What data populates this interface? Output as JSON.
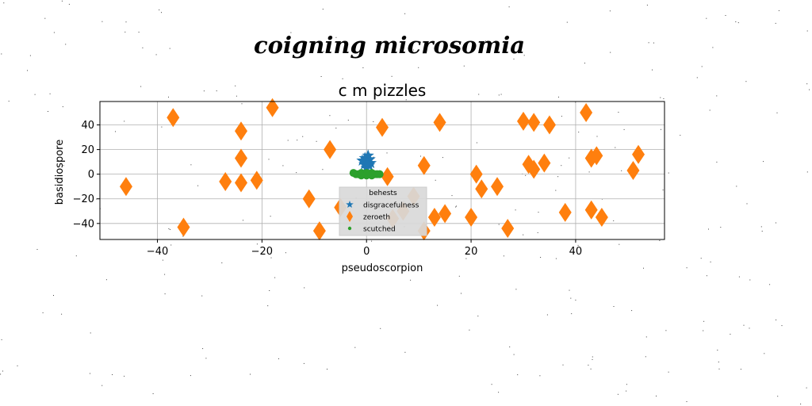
{
  "page_title": "coigning microsomia",
  "chart_data": {
    "type": "scatter",
    "title": "c m pizzles",
    "xlabel": "pseudoscorpion",
    "ylabel": "basidiospore",
    "xlim": [
      -51,
      57
    ],
    "ylim": [
      -53,
      59
    ],
    "x_ticks": [
      -40,
      -20,
      0,
      20,
      40
    ],
    "y_ticks": [
      -40,
      -20,
      0,
      20,
      40
    ],
    "grid": true,
    "legend": {
      "title": "behests",
      "placement": "lower center"
    },
    "colors": {
      "disgracefulness": "#1f77b4",
      "zeroeth": "#ff7f0e",
      "scutched": "#2ca02c"
    },
    "series": [
      {
        "name": "disgracefulness",
        "marker": "star",
        "points": [
          [
            0,
            10
          ],
          [
            0.3,
            15
          ],
          [
            -0.4,
            8
          ],
          [
            0.8,
            9
          ],
          [
            -0.8,
            11
          ],
          [
            0.6,
            12
          ],
          [
            0,
            5
          ],
          [
            -0.3,
            13
          ],
          [
            0.5,
            7
          ],
          [
            0.1,
            9
          ]
        ]
      },
      {
        "name": "zeroeth",
        "marker": "diamond",
        "points": [
          [
            -46,
            -10
          ],
          [
            -37,
            46
          ],
          [
            -35,
            -43
          ],
          [
            -27,
            -6
          ],
          [
            -24,
            35
          ],
          [
            -24,
            13
          ],
          [
            -24,
            -7
          ],
          [
            -21,
            -5
          ],
          [
            -18,
            54
          ],
          [
            -11,
            -20
          ],
          [
            -9,
            -46
          ],
          [
            -7,
            20
          ],
          [
            -5,
            -27
          ],
          [
            3,
            38
          ],
          [
            4,
            -2
          ],
          [
            5,
            -36
          ],
          [
            7,
            -30
          ],
          [
            9,
            -18
          ],
          [
            11,
            7
          ],
          [
            11,
            -46
          ],
          [
            13,
            -35
          ],
          [
            14,
            42
          ],
          [
            15,
            -32
          ],
          [
            20,
            -35
          ],
          [
            21,
            0
          ],
          [
            22,
            -12
          ],
          [
            25,
            -10
          ],
          [
            27,
            -44
          ],
          [
            30,
            43
          ],
          [
            31,
            8
          ],
          [
            32,
            42
          ],
          [
            32,
            4
          ],
          [
            34,
            9
          ],
          [
            35,
            40
          ],
          [
            38,
            -31
          ],
          [
            42,
            50
          ],
          [
            43,
            13
          ],
          [
            43,
            -29
          ],
          [
            44,
            15
          ],
          [
            45,
            -35
          ],
          [
            51,
            3
          ],
          [
            52,
            16
          ]
        ]
      },
      {
        "name": "scutched",
        "marker": "dot",
        "points": [
          [
            -1.5,
            0
          ],
          [
            -1,
            1
          ],
          [
            -0.5,
            0
          ],
          [
            0,
            1
          ],
          [
            0.5,
            0
          ],
          [
            1,
            1
          ],
          [
            1.5,
            0
          ],
          [
            2,
            0
          ],
          [
            -2,
            0
          ],
          [
            -1,
            -1
          ],
          [
            0,
            -1
          ],
          [
            1,
            -1
          ],
          [
            2.5,
            0
          ],
          [
            -2.5,
            1
          ]
        ]
      }
    ]
  }
}
